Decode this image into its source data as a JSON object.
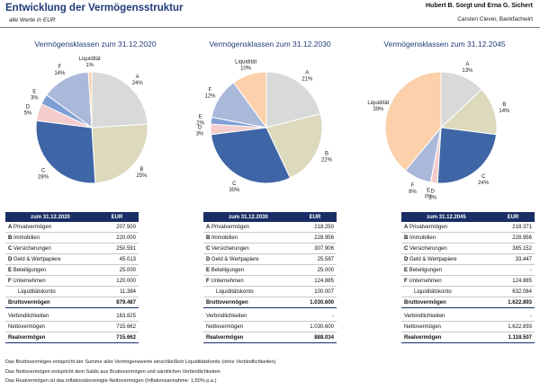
{
  "header": {
    "title": "Entwicklung der Vermögensstruktur",
    "subtitle": "alle Werte in EUR",
    "client": "Hubert B. Sorgt und Erna G. Sichert",
    "advisor": "Carsten Clever, Bankfachwirt"
  },
  "colors": {
    "A": "#d9d9d9",
    "B": "#dcd9bd",
    "C": "#3e65a5",
    "D": "#f4cccc",
    "E": "#7f9fd4",
    "F": "#aab8d9",
    "L": "#fbd0aa",
    "header_bg": "#1a2e66",
    "title": "#1f3a78"
  },
  "chart_data": [
    {
      "type": "pie",
      "title": "Vermögensklassen zum 31.12.2020",
      "slices": [
        {
          "key": "A",
          "letter": "A",
          "pct": "24%",
          "value": 24
        },
        {
          "key": "B",
          "letter": "B",
          "pct": "25%",
          "value": 25
        },
        {
          "key": "C",
          "letter": "C",
          "pct": "28%",
          "value": 28
        },
        {
          "key": "D",
          "letter": "D",
          "pct": "5%",
          "value": 5
        },
        {
          "key": "E",
          "letter": "E",
          "pct": "3%",
          "value": 3
        },
        {
          "key": "F",
          "letter": "F",
          "pct": "14%",
          "value": 14
        },
        {
          "key": "L",
          "letter": "Liquidität",
          "pct": "1%",
          "value": 1
        }
      ]
    },
    {
      "type": "pie",
      "title": "Vermögensklassen zum 31.12.2030",
      "slices": [
        {
          "key": "A",
          "letter": "A",
          "pct": "21%",
          "value": 21
        },
        {
          "key": "B",
          "letter": "B",
          "pct": "22%",
          "value": 22
        },
        {
          "key": "C",
          "letter": "C",
          "pct": "30%",
          "value": 30
        },
        {
          "key": "D",
          "letter": "D",
          "pct": "3%",
          "value": 3
        },
        {
          "key": "E",
          "letter": "E",
          "pct": "2%",
          "value": 2
        },
        {
          "key": "F",
          "letter": "F",
          "pct": "12%",
          "value": 12
        },
        {
          "key": "L",
          "letter": "Liquidität",
          "pct": "10%",
          "value": 10
        }
      ]
    },
    {
      "type": "pie",
      "title": "Vermögensklassen zum 31.12.2045",
      "slices": [
        {
          "key": "A",
          "letter": "A",
          "pct": "13%",
          "value": 13
        },
        {
          "key": "B",
          "letter": "B",
          "pct": "14%",
          "value": 14
        },
        {
          "key": "C",
          "letter": "C",
          "pct": "24%",
          "value": 24
        },
        {
          "key": "D",
          "letter": "D",
          "pct": "2%",
          "value": 2
        },
        {
          "key": "E",
          "letter": "E",
          "pct": "0%",
          "value": 0
        },
        {
          "key": "F",
          "letter": "F",
          "pct": "8%",
          "value": 8
        },
        {
          "key": "L",
          "letter": "Liquidität",
          "pct": "39%",
          "value": 39
        }
      ]
    }
  ],
  "tables": [
    {
      "header_date": "zum 31.12.2020",
      "header_unit": "EUR",
      "rows": [
        {
          "letter": "A",
          "label": "Privatvermögen",
          "value": "207.500"
        },
        {
          "letter": "B",
          "label": "Immobilien",
          "value": "220.000"
        },
        {
          "letter": "C",
          "label": "Versicherungen",
          "value": "250.591"
        },
        {
          "letter": "D",
          "label": "Geld & Wertpapiere",
          "value": "45.013"
        },
        {
          "letter": "E",
          "label": "Beteiligungen",
          "value": "25.000"
        },
        {
          "letter": "F",
          "label": "Unternehmen",
          "value": "120.000"
        },
        {
          "letter": "",
          "label": "Liquiditätskonto",
          "value": "11.384"
        }
      ],
      "brutto_label": "Bruttovermögen",
      "brutto": "879.487",
      "verb_label": "Verbindlichkeiten",
      "verb": "163.825",
      "netto_label": "Nettovermögen",
      "netto": "715.662",
      "real_label": "Realvermögen",
      "real": "715.662"
    },
    {
      "header_date": "zum 31.12.2030",
      "header_unit": "EUR",
      "rows": [
        {
          "letter": "A",
          "label": "Privatvermögen",
          "value": "218.250"
        },
        {
          "letter": "B",
          "label": "Immobilien",
          "value": "228.956"
        },
        {
          "letter": "C",
          "label": "Versicherungen",
          "value": "307.906"
        },
        {
          "letter": "D",
          "label": "Geld & Wertpapiere",
          "value": "25.587"
        },
        {
          "letter": "E",
          "label": "Beteiligungen",
          "value": "25.000"
        },
        {
          "letter": "F",
          "label": "Unternehmen",
          "value": "124.885"
        },
        {
          "letter": "",
          "label": "Liquiditätskonto",
          "value": "100.007"
        }
      ],
      "brutto_label": "Bruttovermögen",
      "brutto": "1.030.600",
      "verb_label": "Verbindlichkeiten",
      "verb": "-",
      "netto_label": "Nettovermögen",
      "netto": "1.030.600",
      "real_label": "Realvermögen",
      "real": "888.034"
    },
    {
      "header_date": "zum 31.12.2045",
      "header_unit": "EUR",
      "rows": [
        {
          "letter": "A",
          "label": "Privatvermögen",
          "value": "218.371"
        },
        {
          "letter": "B",
          "label": "Immobilien",
          "value": "228.956"
        },
        {
          "letter": "C",
          "label": "Versicherungen",
          "value": "385.152"
        },
        {
          "letter": "D",
          "label": "Geld & Wertpapiere",
          "value": "33.447"
        },
        {
          "letter": "E",
          "label": "Beteiligungen",
          "value": "-"
        },
        {
          "letter": "F",
          "label": "Unternehmen",
          "value": "124.885"
        },
        {
          "letter": "",
          "label": "Liquiditätskonto",
          "value": "632.084"
        }
      ],
      "brutto_label": "Bruttovermögen",
      "brutto": "1.622.893",
      "verb_label": "Verbindlichkeiten",
      "verb": "-",
      "netto_label": "Nettovermögen",
      "netto": "1.622.893",
      "real_label": "Realvermögen",
      "real": "1.118.507"
    }
  ],
  "footnotes": [
    "Das Bruttovermögen entspricht der Summe aller Vermögenswerte einschließlich Liquiditätskonto (ohne Verbindlichkeiten)",
    "Das Nettovermögen entspricht dem Saldo aus Bruttovermögen und sämtlichen Verbindlichkeiten",
    "Das Realvermögen ist das inflationsbereinigte Nettovermögen  (Inflationsannahme: 1,50% p.a.)"
  ]
}
